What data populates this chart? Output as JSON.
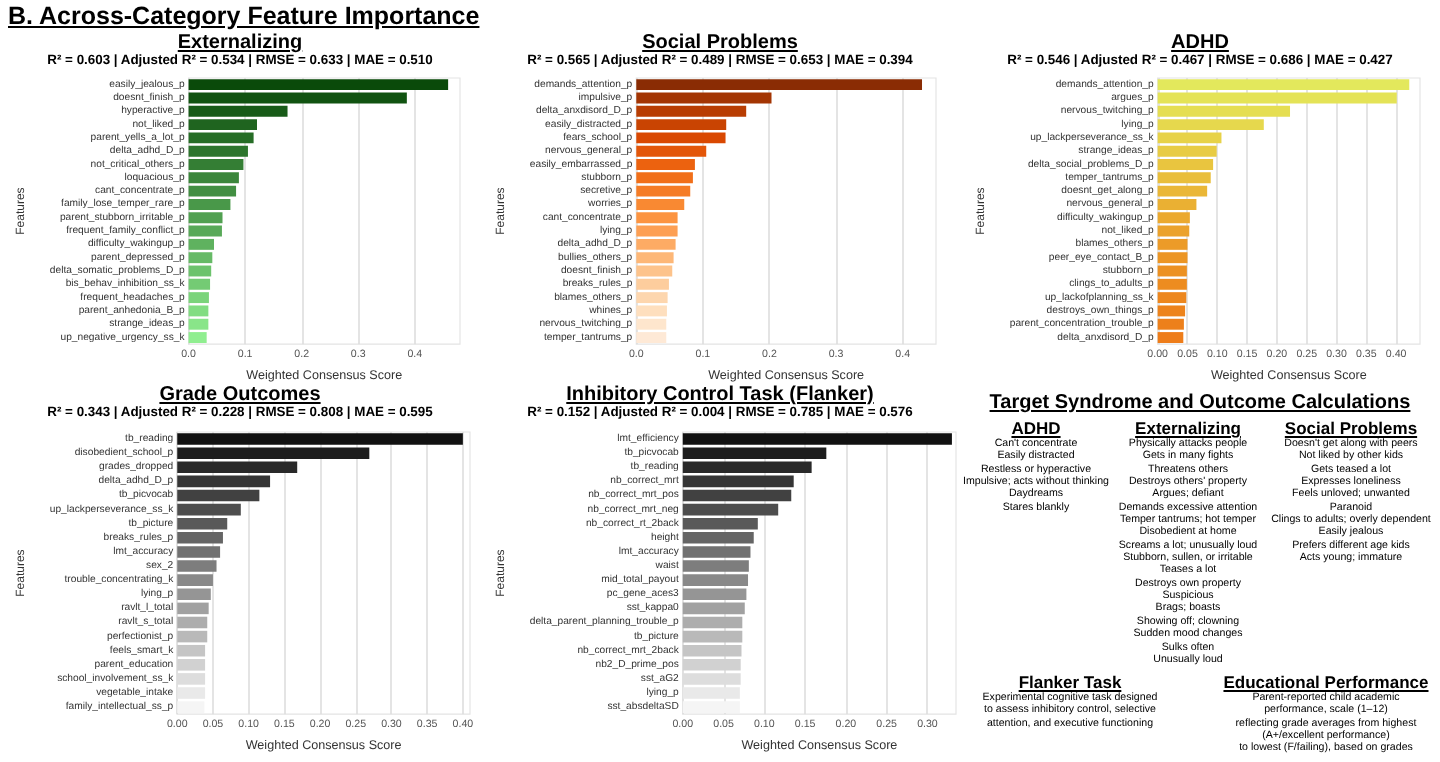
{
  "chart_data": [
    {
      "type": "bar",
      "orientation": "horizontal",
      "annotations": [
        "B. Across-Category Feature Importance"
      ],
      "title": "Externalizing",
      "subtitle": "R² = 0.603 | Adjusted R² = 0.534 | RMSE = 0.633 | MAE = 0.510",
      "xlabel": "Weighted Consensus Score",
      "ylabel": "Features",
      "grid": "x",
      "categories": [
        "easily_jealous_p",
        "doesnt_finish_p",
        "hyperactive_p",
        "not_liked_p",
        "parent_yells_a_lot_p",
        "delta_adhd_D_p",
        "not_critical_others_p",
        "loquacious_p",
        "cant_concentrate_p",
        "family_lose_temper_rare_p",
        "parent_stubborn_irritable_p",
        "frequent_family_conflict_p",
        "difficulty_wakingup_p",
        "parent_depressed_p",
        "delta_somatic_problems_D_p",
        "bis_behav_inhibition_ss_k",
        "frequent_headaches_p",
        "parent_anhedonia_B_p",
        "strange_ideas_p",
        "up_negative_urgency_ss_k"
      ],
      "values": [
        0.459,
        0.386,
        0.175,
        0.121,
        0.115,
        0.105,
        0.097,
        0.089,
        0.084,
        0.074,
        0.06,
        0.059,
        0.045,
        0.042,
        0.04,
        0.038,
        0.036,
        0.035,
        0.035,
        0.032
      ],
      "colors": [
        "#0a4a0a",
        "#115311",
        "#185b18",
        "#1f641f",
        "#266d26",
        "#2d752d",
        "#347e34",
        "#3b863b",
        "#428f42",
        "#499849",
        "#51a051",
        "#58a958",
        "#5fb25f",
        "#66ba66",
        "#6dc36d",
        "#74cb74",
        "#7bd47b",
        "#82dd82",
        "#89e589",
        "#90ee90"
      ],
      "xlim": [
        0,
        0.48
      ],
      "xticks": [
        {
          "value": 0,
          "label": "0.0"
        },
        0.1,
        0.2,
        0.3,
        0.4
      ]
    },
    {
      "type": "bar",
      "orientation": "horizontal",
      "title": "Social Problems",
      "subtitle": "R² = 0.565 | Adjusted R² = 0.489 | RMSE = 0.653 | MAE = 0.394",
      "xlabel": "Weighted Consensus Score",
      "ylabel": "Features",
      "grid": "x",
      "categories": [
        "demands_attention_p",
        "impulsive_p",
        "delta_anxdisord_D_p",
        "easily_distracted_p",
        "fears_school_p",
        "nervous_general_p",
        "easily_embarrassed_p",
        "stubborn_p",
        "secretive_p",
        "worries_p",
        "cant_concentrate_p",
        "lying_p",
        "delta_adhd_D_p",
        "bullies_others_p",
        "doesnt_finish_p",
        "breaks_rules_p",
        "blames_others_p",
        "whines_p",
        "nervous_twitching_p",
        "temper_tantrums_p"
      ],
      "values": [
        0.429,
        0.203,
        0.165,
        0.135,
        0.134,
        0.105,
        0.088,
        0.085,
        0.081,
        0.072,
        0.062,
        0.062,
        0.059,
        0.056,
        0.054,
        0.049,
        0.047,
        0.046,
        0.045,
        0.045
      ],
      "colors": [
        "#8a2c04",
        "#a33503",
        "#b83d02",
        "#c94402",
        "#d94801",
        "#e35609",
        "#ec620f",
        "#f16f19",
        "#f57c26",
        "#f98932",
        "#fc9441",
        "#fd9f53",
        "#fdab64",
        "#fdb777",
        "#fdc38b",
        "#fdcd9d",
        "#fdd6ae",
        "#fedfbe",
        "#fee6cd",
        "#fee9d6"
      ],
      "xlim": [
        0,
        0.45
      ],
      "xticks": [
        {
          "value": 0,
          "label": "0.0"
        },
        0.1,
        0.2,
        0.3,
        0.4
      ]
    },
    {
      "type": "bar",
      "orientation": "horizontal",
      "title": "ADHD",
      "subtitle": "R² = 0.546 | Adjusted R² = 0.467 | RMSE = 0.686 | MAE = 0.427",
      "xlabel": "Weighted Consensus Score",
      "ylabel": "Features",
      "grid": "x",
      "categories": [
        "demands_attention_p",
        "argues_p",
        "nervous_twitching_p",
        "lying_p",
        "up_lackperseverance_ss_k",
        "strange_ideas_p",
        "delta_social_problems_D_p",
        "temper_tantrums_p",
        "doesnt_get_along_p",
        "nervous_general_p",
        "difficulty_wakingup_p",
        "not_liked_p",
        "blames_others_p",
        "peer_eye_contact_B_p",
        "stubborn_p",
        "clings_to_adults_p",
        "up_lackofplanning_ss_k",
        "destroys_own_things_p",
        "parent_concentration_trouble_p",
        "delta_anxdisord_D_p"
      ],
      "values": [
        0.422,
        0.401,
        0.222,
        0.178,
        0.107,
        0.099,
        0.093,
        0.089,
        0.083,
        0.065,
        0.054,
        0.053,
        0.05,
        0.05,
        0.049,
        0.049,
        0.048,
        0.046,
        0.044,
        0.043
      ],
      "colors": [
        "#e3e85c",
        "#e4e357",
        "#e5de52",
        "#e6d84d",
        "#e7d248",
        "#e8cc44",
        "#e9c53f",
        "#e9be3b",
        "#eab737",
        "#eab033",
        "#eba92f",
        "#eba22c",
        "#ec9b28",
        "#ec9625",
        "#ec9122",
        "#ed8c20",
        "#ed871e",
        "#ed831c",
        "#ed801b",
        "#ee7d1a"
      ],
      "xlim": [
        0,
        0.44
      ],
      "xticks": [
        {
          "value": 0,
          "label": "0.00"
        },
        {
          "value": 0.05,
          "label": "0.05"
        },
        {
          "value": 0.1,
          "label": "0.10"
        },
        {
          "value": 0.15,
          "label": "0.15"
        },
        {
          "value": 0.2,
          "label": "0.20"
        },
        {
          "value": 0.25,
          "label": "0.25"
        },
        {
          "value": 0.3,
          "label": "0.30"
        },
        {
          "value": 0.35,
          "label": "0.35"
        },
        {
          "value": 0.4,
          "label": "0.40"
        }
      ]
    },
    {
      "type": "bar",
      "orientation": "horizontal",
      "title": "Grade Outcomes",
      "subtitle": "R² = 0.343 | Adjusted R² = 0.228 | RMSE = 0.808 | MAE = 0.595",
      "xlabel": "Weighted Consensus Score",
      "ylabel": "Features",
      "grid": "x",
      "categories": [
        "tb_reading",
        "disobedient_school_p",
        "grades_dropped",
        "delta_adhd_D_p",
        "tb_picvocab",
        "up_lackperseverance_ss_k",
        "tb_picture",
        "breaks_rules_p",
        "lmt_accuracy",
        "sex_2",
        "trouble_concentrating_k",
        "lying_p",
        "ravlt_l_total",
        "ravlt_s_total",
        "perfectionist_p",
        "feels_smart_k",
        "parent_education",
        "school_involvement_ss_k",
        "vegetable_intake",
        "family_intellectual_ss_p"
      ],
      "values": [
        0.4,
        0.269,
        0.168,
        0.13,
        0.115,
        0.089,
        0.07,
        0.064,
        0.06,
        0.055,
        0.05,
        0.047,
        0.044,
        0.042,
        0.042,
        0.039,
        0.039,
        0.039,
        0.039,
        0.038
      ],
      "colors": [
        "#111111",
        "#1d1d1d",
        "#292929",
        "#353535",
        "#414141",
        "#4d4d4d",
        "#595959",
        "#656565",
        "#717171",
        "#7d7d7d",
        "#898989",
        "#959595",
        "#a1a1a1",
        "#adadad",
        "#b9b9b9",
        "#c5c5c5",
        "#d1d1d1",
        "#dddddd",
        "#e9e9e9",
        "#f5f5f5"
      ],
      "xlim": [
        0,
        0.41
      ],
      "xticks": [
        {
          "value": 0,
          "label": "0.00"
        },
        {
          "value": 0.05,
          "label": "0.05"
        },
        {
          "value": 0.1,
          "label": "0.10"
        },
        {
          "value": 0.15,
          "label": "0.15"
        },
        {
          "value": 0.2,
          "label": "0.20"
        },
        {
          "value": 0.25,
          "label": "0.25"
        },
        {
          "value": 0.3,
          "label": "0.30"
        },
        {
          "value": 0.35,
          "label": "0.35"
        },
        {
          "value": 0.4,
          "label": "0.40"
        }
      ]
    },
    {
      "type": "bar",
      "orientation": "horizontal",
      "title": "Inhibitory Control Task (Flanker)",
      "subtitle": "R² = 0.152 | Adjusted R² = 0.004 | RMSE = 0.785 | MAE = 0.576",
      "xlabel": "Weighted Consensus Score",
      "ylabel": "Features",
      "grid": "x",
      "categories": [
        "lmt_efficiency",
        "tb_picvocab",
        "tb_reading",
        "nb_correct_mrt",
        "nb_correct_mrt_pos",
        "nb_correct_mrt_neg",
        "nb_correct_rt_2back",
        "height",
        "lmt_accuracy",
        "waist",
        "mid_total_payout",
        "pc_gene_aces3",
        "sst_kappa0",
        "delta_parent_planning_trouble_p",
        "tb_picture",
        "nb_correct_mrt_2back",
        "nb2_D_prime_pos",
        "sst_aG2",
        "lying_p",
        "sst_absdeltaSD"
      ],
      "values": [
        0.33,
        0.176,
        0.158,
        0.136,
        0.133,
        0.117,
        0.092,
        0.087,
        0.083,
        0.081,
        0.08,
        0.078,
        0.076,
        0.073,
        0.073,
        0.072,
        0.071,
        0.071,
        0.07,
        0.07
      ],
      "colors": [
        "#111111",
        "#1d1d1d",
        "#292929",
        "#353535",
        "#414141",
        "#4d4d4d",
        "#595959",
        "#656565",
        "#717171",
        "#7d7d7d",
        "#898989",
        "#959595",
        "#a1a1a1",
        "#adadad",
        "#b9b9b9",
        "#c5c5c5",
        "#d1d1d1",
        "#dddddd",
        "#e9e9e9",
        "#f5f5f5"
      ],
      "xlim": [
        0,
        0.335
      ],
      "xticks": [
        {
          "value": 0,
          "label": "0.00"
        },
        {
          "value": 0.05,
          "label": "0.05"
        },
        {
          "value": 0.1,
          "label": "0.10"
        },
        {
          "value": 0.15,
          "label": "0.15"
        },
        {
          "value": 0.2,
          "label": "0.20"
        },
        {
          "value": 0.25,
          "label": "0.25"
        },
        {
          "value": 0.3,
          "label": "0.30"
        }
      ]
    },
    {
      "type": "other",
      "title": "Target Syndrome and Outcome Calculations",
      "annotations": [
        "ADHD\nCan't concentrate\nEasily distracted\nRestless or hyperactive\nImpulsive; acts without thinking\nDaydreams\nStares blankly",
        "Externalizing\nPhysically attacks people\nGets in many fights\nThreatens others\nDestroys others' property\nArgues; defiant\nDemands excessive attention\nTemper tantrums; hot temper\nDisobedient at home\nScreams a lot; unusually loud\nStubborn, sullen, or irritable\nTeases a lot\nDestroys own property\nSuspicious\nBrags; boasts\nShowing off; clowning\nSudden mood changes\nSulks often\nUnusually loud",
        "Social Problems\nDoesn't get along with peers\nNot liked by other kids\nGets teased a lot\nExpresses loneliness\nFeels unloved; unwanted\nParanoid\nClings to adults; overly dependent\nEasily jealous\nPrefers different age kids\nActs young; immature",
        "Flanker Task\nExperimental cognitive task designed\nto assess inhibitory control, selective\nattention, and executive functioning",
        "Educational Performance\nParent-reported child academic\nperformance, scale (1–12)\nreflecting grade averages from highest\n(A+/excellent performance)\nto lowest (F/failing), based on grades"
      ]
    }
  ]
}
